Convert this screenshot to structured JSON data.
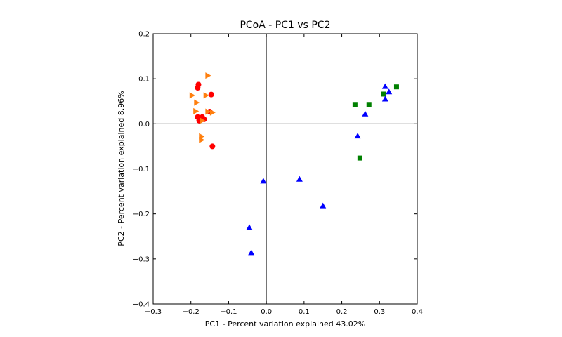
{
  "chart_data": {
    "type": "scatter",
    "title": "PCoA - PC1 vs PC2",
    "xlabel": "PC1 - Percent variation explained 43.02%",
    "ylabel": "PC2 - Percent variation explained 8.96%",
    "xlim": [
      -0.3,
      0.4
    ],
    "ylim": [
      -0.4,
      0.2
    ],
    "xticks": [
      "−0.3",
      "−0.2",
      "−0.1",
      "0.0",
      "0.1",
      "0.2",
      "0.3",
      "0.4"
    ],
    "yticks": [
      "−0.4",
      "−0.3",
      "−0.2",
      "−0.1",
      "0.0",
      "0.1",
      "0.2"
    ],
    "xtick_values": [
      -0.3,
      -0.2,
      -0.1,
      0.0,
      0.1,
      0.2,
      0.3,
      0.4
    ],
    "ytick_values": [
      -0.4,
      -0.3,
      -0.2,
      -0.1,
      0.0,
      0.1,
      0.2
    ],
    "zero_lines": true,
    "grid": false,
    "legend": false,
    "series": [
      {
        "marker": "circle",
        "color": "#ff0000",
        "points": [
          [
            -0.18,
            0.087
          ],
          [
            -0.182,
            0.08
          ],
          [
            -0.146,
            0.065
          ],
          [
            -0.15,
            0.027
          ],
          [
            -0.182,
            0.015
          ],
          [
            -0.175,
            0.012
          ],
          [
            -0.17,
            0.015
          ],
          [
            -0.178,
            0.007
          ],
          [
            -0.165,
            0.01
          ],
          [
            -0.143,
            -0.05
          ]
        ]
      },
      {
        "marker": "triangle-right",
        "color": "#ff7f0e",
        "points": [
          [
            -0.155,
            0.107
          ],
          [
            -0.197,
            0.063
          ],
          [
            -0.16,
            0.063
          ],
          [
            -0.185,
            0.047
          ],
          [
            -0.187,
            0.028
          ],
          [
            -0.155,
            0.027
          ],
          [
            -0.143,
            0.025
          ],
          [
            -0.172,
            -0.028
          ],
          [
            -0.172,
            -0.036
          ],
          [
            -0.17,
            0.007
          ]
        ]
      },
      {
        "marker": "square",
        "color": "#008000",
        "points": [
          [
            0.235,
            0.043
          ],
          [
            0.272,
            0.043
          ],
          [
            0.31,
            0.066
          ],
          [
            0.345,
            0.082
          ],
          [
            0.248,
            -0.076
          ]
        ]
      },
      {
        "marker": "triangle-up",
        "color": "#0000ff",
        "points": [
          [
            0.315,
            0.083
          ],
          [
            0.325,
            0.071
          ],
          [
            0.315,
            0.055
          ],
          [
            0.262,
            0.022
          ],
          [
            0.242,
            -0.027
          ],
          [
            -0.008,
            -0.127
          ],
          [
            0.088,
            -0.123
          ],
          [
            0.15,
            -0.182
          ],
          [
            -0.045,
            -0.23
          ],
          [
            -0.04,
            -0.286
          ]
        ]
      }
    ]
  }
}
